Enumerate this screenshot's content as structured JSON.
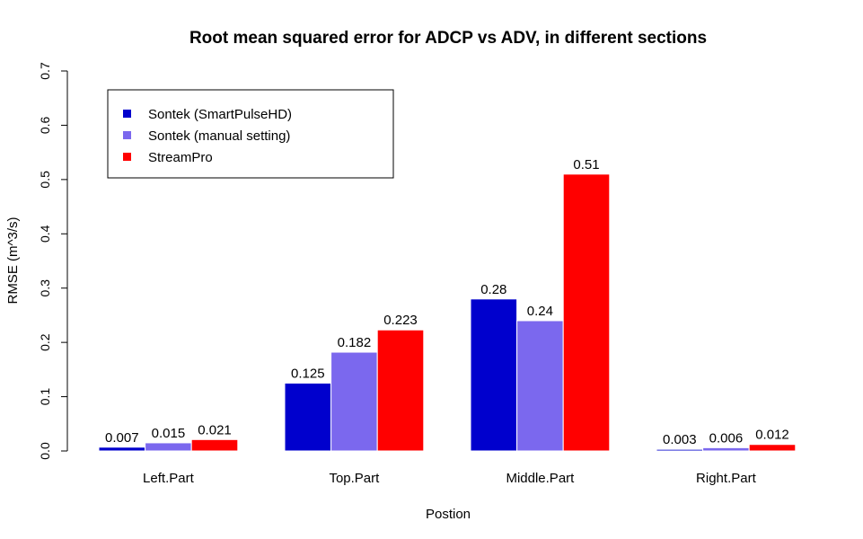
{
  "chart_data": {
    "type": "bar",
    "title": "Root mean squared error for ADCP vs ADV, in different sections",
    "xlabel": "Postion",
    "ylabel": "RMSE (m^3/s)",
    "ylim": [
      0,
      0.7
    ],
    "yticks": [
      "0.0",
      "0.1",
      "0.2",
      "0.3",
      "0.4",
      "0.5",
      "0.6",
      "0.7"
    ],
    "categories": [
      "Left.Part",
      "Top.Part",
      "Middle.Part",
      "Right.Part"
    ],
    "series": [
      {
        "name": "Sontek (SmartPulseHD)",
        "color": "#0000CD",
        "values": [
          0.007,
          0.125,
          0.28,
          0.003
        ],
        "labels": [
          "0.007",
          "0.125",
          "0.28",
          "0.003"
        ]
      },
      {
        "name": "Sontek (manual setting)",
        "color": "#7B68EE",
        "values": [
          0.015,
          0.182,
          0.24,
          0.006
        ],
        "labels": [
          "0.015",
          "0.182",
          "0.24",
          "0.006"
        ]
      },
      {
        "name": "StreamPro",
        "color": "#FF0000",
        "values": [
          0.021,
          0.223,
          0.51,
          0.012
        ],
        "labels": [
          "0.021",
          "0.223",
          "0.51",
          "0.012"
        ]
      }
    ],
    "legend_position": "top-left",
    "grid": false
  }
}
